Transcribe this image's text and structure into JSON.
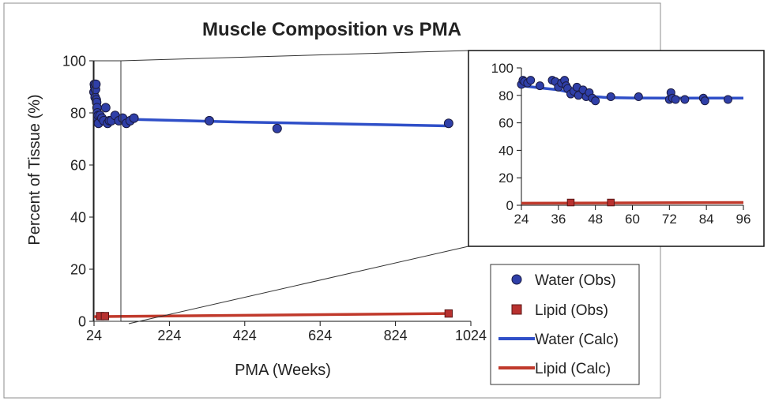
{
  "chart_data": [
    {
      "type": "scatter",
      "title": "Muscle Composition vs PMA",
      "xlabel": "PMA (Weeks)",
      "ylabel": "Percent of Tissue (%)",
      "xlim": [
        24,
        1024
      ],
      "ylim": [
        0,
        100
      ],
      "x_ticks": [
        "24",
        "224",
        "424",
        "624",
        "824",
        "1024"
      ],
      "y_ticks": [
        "0",
        "20",
        "40",
        "60",
        "80",
        "100"
      ],
      "grid": false,
      "legend_position": "bottom-right",
      "series": [
        {
          "name": "Water (Obs)",
          "kind": "scatter",
          "marker": "circle",
          "color": "#2f3fa8",
          "points": [
            [
              24,
              88
            ],
            [
              25,
              91
            ],
            [
              26,
              90
            ],
            [
              27,
              86
            ],
            [
              28,
              89
            ],
            [
              29,
              91
            ],
            [
              30,
              85
            ],
            [
              31,
              84
            ],
            [
              32,
              82
            ],
            [
              33,
              80
            ],
            [
              34,
              78
            ],
            [
              35,
              79
            ],
            [
              36,
              76
            ],
            [
              40,
              79
            ],
            [
              45,
              78
            ],
            [
              50,
              77
            ],
            [
              55,
              82
            ],
            [
              60,
              76
            ],
            [
              65,
              77
            ],
            [
              70,
              77
            ],
            [
              80,
              79
            ],
            [
              90,
              77
            ],
            [
              100,
              78
            ],
            [
              110,
              76
            ],
            [
              120,
              77
            ],
            [
              130,
              78
            ],
            [
              330,
              77
            ],
            [
              510,
              74
            ],
            [
              965,
              76
            ]
          ]
        },
        {
          "name": "Lipid (Obs)",
          "kind": "scatter",
          "marker": "square",
          "color": "#b8312f",
          "points": [
            [
              40,
              2
            ],
            [
              53,
              2
            ],
            [
              965,
              3
            ]
          ]
        },
        {
          "name": "Water (Calc)",
          "kind": "line",
          "color": "#2f4fc8",
          "points": [
            [
              24,
              86
            ],
            [
              30,
              84
            ],
            [
              36,
              81
            ],
            [
              42,
              79
            ],
            [
              50,
              78
            ],
            [
              60,
              78
            ],
            [
              130,
              77.5
            ],
            [
              400,
              76.5
            ],
            [
              965,
              75
            ]
          ]
        },
        {
          "name": "Lipid (Calc)",
          "kind": "line",
          "color": "#c0392b",
          "points": [
            [
              24,
              1.8
            ],
            [
              965,
              3
            ]
          ]
        }
      ]
    },
    {
      "type": "scatter",
      "title": "",
      "xlabel": "",
      "ylabel": "",
      "xlim": [
        24,
        96
      ],
      "ylim": [
        0,
        100
      ],
      "x_ticks": [
        "24",
        "36",
        "48",
        "60",
        "72",
        "84",
        "96"
      ],
      "y_ticks": [
        "0",
        "20",
        "40",
        "60",
        "80",
        "100"
      ],
      "grid": false,
      "series": [
        {
          "name": "Water (Obs)",
          "kind": "scatter",
          "marker": "circle",
          "color": "#2f3fa8",
          "points": [
            [
              24,
              88
            ],
            [
              24.5,
              91
            ],
            [
              25,
              90
            ],
            [
              26,
              89
            ],
            [
              27,
              91
            ],
            [
              30,
              87
            ],
            [
              34,
              91
            ],
            [
              35,
              90
            ],
            [
              36,
              86
            ],
            [
              37,
              89
            ],
            [
              38,
              91
            ],
            [
              38.5,
              87
            ],
            [
              39,
              85
            ],
            [
              40,
              81
            ],
            [
              41,
              83
            ],
            [
              42,
              86
            ],
            [
              42.5,
              80
            ],
            [
              44,
              84
            ],
            [
              45,
              79
            ],
            [
              46,
              82
            ],
            [
              47,
              78
            ],
            [
              48,
              76
            ],
            [
              53,
              79
            ],
            [
              62,
              79
            ],
            [
              72,
              77
            ],
            [
              72.5,
              82
            ],
            [
              73,
              78
            ],
            [
              74,
              77
            ],
            [
              77,
              77
            ],
            [
              83,
              78
            ],
            [
              83.5,
              76
            ],
            [
              91,
              77
            ]
          ]
        },
        {
          "name": "Lipid (Obs)",
          "kind": "scatter",
          "marker": "square",
          "color": "#b8312f",
          "points": [
            [
              40,
              2
            ],
            [
              53,
              2
            ]
          ]
        },
        {
          "name": "Water (Calc)",
          "kind": "line",
          "color": "#2f4fc8",
          "points": [
            [
              24,
              87
            ],
            [
              28,
              86
            ],
            [
              32,
              85
            ],
            [
              36,
              84
            ],
            [
              40,
              82
            ],
            [
              44,
              80
            ],
            [
              48,
              79
            ],
            [
              52,
              78.4
            ],
            [
              56,
              78.2
            ],
            [
              60,
              78.1
            ],
            [
              70,
              78
            ],
            [
              80,
              78
            ],
            [
              96,
              78
            ]
          ]
        },
        {
          "name": "Lipid (Calc)",
          "kind": "line",
          "color": "#c0392b",
          "points": [
            [
              24,
              1.5
            ],
            [
              96,
              2
            ]
          ]
        }
      ]
    }
  ]
}
